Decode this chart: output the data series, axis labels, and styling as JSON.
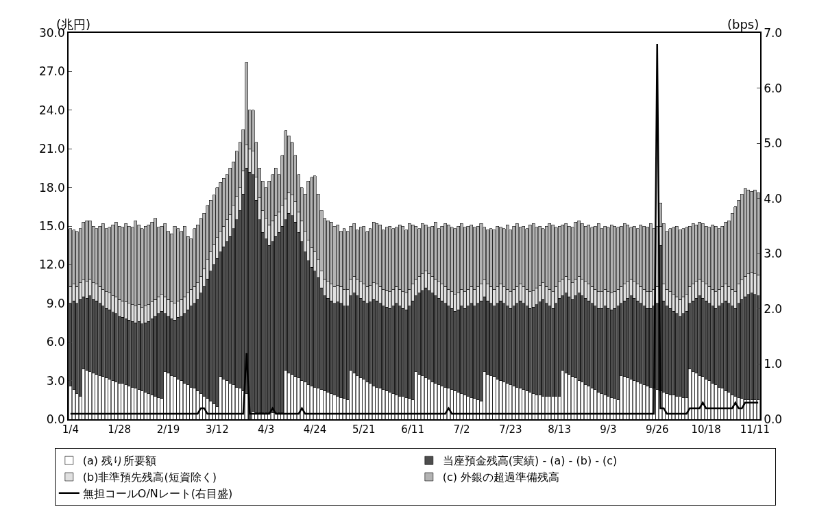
{
  "chart_data": {
    "type": "bar",
    "stacked": true,
    "ylabel": "(兆円)",
    "y2label": "(bps)",
    "categories": [
      "1/4",
      null,
      null,
      null,
      null,
      null,
      null,
      null,
      null,
      null,
      null,
      null,
      null,
      null,
      null,
      "1/28",
      null,
      null,
      null,
      null,
      null,
      null,
      null,
      null,
      null,
      null,
      null,
      null,
      null,
      null,
      "2/19",
      null,
      null,
      null,
      null,
      null,
      null,
      null,
      null,
      null,
      null,
      null,
      null,
      null,
      null,
      "3/12",
      null,
      null,
      null,
      null,
      null,
      null,
      null,
      null,
      null,
      null,
      null,
      null,
      null,
      null,
      "4/3",
      null,
      null,
      null,
      null,
      null,
      null,
      null,
      null,
      null,
      null,
      null,
      null,
      null,
      null,
      "4/24",
      null,
      null,
      null,
      null,
      null,
      null,
      null,
      null,
      null,
      null,
      null,
      null,
      null,
      null,
      "5/21",
      null,
      null,
      null,
      null,
      null,
      null,
      null,
      null,
      null,
      null,
      null,
      null,
      null,
      null,
      "6/11",
      null,
      null,
      null,
      null,
      null,
      null,
      null,
      null,
      null,
      null,
      null,
      null,
      null,
      null,
      "7/2",
      null,
      null,
      null,
      null,
      null,
      null,
      null,
      null,
      null,
      null,
      null,
      null,
      null,
      null,
      "7/23",
      null,
      null,
      null,
      null,
      null,
      null,
      null,
      null,
      null,
      null,
      null,
      null,
      null,
      null,
      "8/13",
      null,
      null,
      null,
      null,
      null,
      null,
      null,
      null,
      null,
      null,
      null,
      null,
      null,
      null,
      "9/3",
      null,
      null,
      null,
      null,
      null,
      null,
      null,
      null,
      null,
      null,
      null,
      null,
      null,
      null,
      "9/26",
      null,
      null,
      null,
      null,
      null,
      null,
      null,
      null,
      null,
      null,
      null,
      null,
      null,
      null,
      "10/18",
      null,
      null,
      null,
      null,
      null,
      null,
      null,
      null,
      null,
      null,
      null,
      null,
      null,
      null,
      "11/11",
      null
    ],
    "series": [
      {
        "name": "(a) 残り所要額",
        "color": "#ffffff",
        "values": [
          2.6,
          2.3,
          2.0,
          1.8,
          3.9,
          3.8,
          3.7,
          3.6,
          3.5,
          3.4,
          3.3,
          3.2,
          3.1,
          3.0,
          2.9,
          2.8,
          2.8,
          2.7,
          2.6,
          2.5,
          2.4,
          2.3,
          2.2,
          2.1,
          2.0,
          1.9,
          1.8,
          1.7,
          1.6,
          3.7,
          3.6,
          3.4,
          3.3,
          3.1,
          3.0,
          2.8,
          2.7,
          2.5,
          2.4,
          2.2,
          2.0,
          1.8,
          1.6,
          1.4,
          1.2,
          1.0,
          3.3,
          3.1,
          3.0,
          2.8,
          2.7,
          2.5,
          2.4,
          2.2,
          2.0,
          null,
          0.6,
          0.5,
          0.5,
          0.5,
          0.5,
          0.5,
          0.5,
          0.5,
          0.5,
          0.5,
          3.8,
          3.6,
          3.5,
          3.3,
          3.2,
          3.0,
          2.9,
          2.7,
          2.6,
          2.5,
          2.4,
          2.3,
          2.2,
          2.1,
          2.0,
          1.9,
          1.8,
          1.7,
          1.6,
          1.5,
          3.8,
          3.6,
          3.4,
          3.2,
          3.1,
          2.9,
          2.8,
          2.6,
          2.5,
          2.4,
          2.3,
          2.2,
          2.1,
          2.0,
          1.9,
          1.8,
          1.8,
          1.7,
          1.6,
          1.5,
          3.7,
          3.5,
          3.4,
          3.2,
          3.1,
          2.9,
          2.8,
          2.7,
          2.6,
          2.5,
          2.4,
          2.3,
          2.2,
          2.1,
          2.0,
          1.9,
          1.8,
          1.7,
          1.6,
          1.5,
          1.4,
          3.7,
          3.5,
          3.4,
          3.3,
          3.1,
          3.0,
          2.9,
          2.8,
          2.7,
          2.6,
          2.5,
          2.4,
          2.3,
          2.2,
          2.1,
          2.0,
          1.9,
          1.9,
          1.8,
          1.8,
          1.8,
          1.8,
          1.8,
          1.8,
          3.8,
          3.6,
          3.5,
          3.3,
          3.2,
          3.0,
          2.9,
          2.7,
          2.6,
          2.4,
          2.3,
          2.1,
          2.0,
          1.9,
          1.8,
          1.7,
          1.6,
          1.5,
          3.4,
          3.3,
          3.2,
          3.1,
          3.0,
          2.9,
          2.8,
          2.7,
          2.6,
          2.5,
          2.4,
          2.3,
          2.2,
          2.1,
          2.0,
          1.9,
          1.9,
          1.8,
          1.8,
          1.7,
          1.7,
          3.9,
          3.7,
          3.6,
          3.4,
          3.3,
          3.1,
          3.0,
          2.8,
          2.7,
          2.5,
          2.4,
          2.2,
          2.1,
          1.9,
          1.8,
          1.7,
          1.6,
          1.5,
          1.5,
          1.5,
          1.5,
          1.5
        ]
      },
      {
        "name": "当座預金残高(実績) - (a) - (b) - (c)",
        "color": "#4d4d4d",
        "values": [
          6.4,
          6.9,
          7.0,
          7.5,
          5.6,
          5.6,
          5.9,
          5.7,
          5.7,
          5.6,
          5.5,
          5.4,
          5.4,
          5.3,
          5.3,
          5.2,
          5.1,
          5.1,
          5.1,
          5.1,
          5.1,
          5.3,
          5.2,
          5.4,
          5.6,
          5.9,
          6.2,
          6.5,
          6.8,
          4.5,
          4.4,
          4.4,
          4.4,
          4.8,
          5.0,
          5.4,
          5.8,
          6.3,
          6.6,
          7.1,
          7.8,
          8.5,
          9.3,
          10.1,
          10.8,
          11.5,
          9.7,
          10.3,
          10.8,
          11.4,
          12.1,
          13.0,
          13.8,
          15.3,
          17.5,
          19.2,
          18.4,
          16.5,
          15.0,
          14.0,
          13.5,
          13.0,
          13.3,
          13.7,
          14.0,
          14.5,
          11.7,
          12.4,
          12.3,
          12.0,
          11.3,
          10.8,
          10.1,
          9.6,
          9.2,
          9.0,
          8.6,
          7.9,
          7.4,
          7.3,
          7.2,
          7.1,
          7.3,
          7.3,
          7.2,
          7.3,
          5.8,
          6.2,
          6.2,
          6.2,
          6.1,
          6.1,
          6.3,
          6.7,
          6.7,
          6.6,
          6.5,
          6.5,
          6.5,
          6.8,
          7.1,
          7.0,
          6.8,
          6.8,
          7.2,
          7.7,
          5.9,
          6.3,
          6.6,
          7.0,
          6.9,
          6.9,
          6.8,
          6.7,
          6.6,
          6.5,
          6.4,
          6.3,
          6.2,
          6.4,
          6.8,
          6.7,
          7.0,
          7.3,
          7.2,
          7.5,
          7.8,
          5.8,
          5.7,
          5.6,
          5.5,
          5.9,
          6.2,
          6.1,
          6.0,
          5.9,
          6.2,
          6.5,
          6.8,
          6.7,
          6.6,
          6.5,
          6.7,
          7.0,
          7.2,
          7.5,
          7.2,
          7.0,
          6.8,
          7.2,
          7.6,
          5.8,
          6.2,
          6.0,
          6.0,
          6.4,
          6.8,
          6.7,
          6.7,
          6.6,
          6.6,
          6.5,
          6.5,
          6.6,
          6.9,
          6.8,
          6.8,
          7.0,
          7.3,
          5.6,
          5.9,
          6.2,
          6.5,
          6.4,
          6.3,
          6.2,
          6.1,
          6.0,
          6.1,
          6.4,
          6.7,
          11.3,
          7.1,
          6.8,
          6.7,
          6.5,
          6.4,
          6.2,
          6.5,
          6.7,
          5.1,
          5.5,
          5.8,
          6.2,
          6.1,
          6.1,
          6.0,
          6.0,
          5.9,
          6.3,
          6.6,
          7.0,
          6.9,
          6.9,
          6.8,
          7.3,
          7.7,
          8.0,
          8.2,
          8.3,
          8.2,
          8.1
        ]
      },
      {
        "name": "(b)非準預先残高(短資除く)",
        "color": "#e0e0e0",
        "values": [
          1.3,
          1.3,
          1.3,
          1.3,
          1.3,
          1.3,
          1.3,
          1.3,
          1.3,
          1.3,
          1.3,
          1.3,
          1.3,
          1.3,
          1.3,
          1.3,
          1.3,
          1.3,
          1.3,
          1.3,
          1.3,
          1.3,
          1.3,
          1.3,
          1.3,
          1.3,
          1.3,
          1.3,
          1.3,
          1.3,
          1.3,
          1.3,
          1.3,
          1.3,
          1.3,
          1.3,
          1.3,
          1.3,
          1.3,
          1.3,
          1.3,
          1.4,
          1.5,
          1.5,
          1.6,
          1.6,
          1.6,
          1.6,
          1.7,
          1.7,
          1.8,
          1.8,
          1.8,
          1.8,
          1.8,
          1.8,
          1.8,
          1.8,
          1.7,
          1.7,
          1.6,
          1.6,
          1.6,
          1.6,
          1.6,
          1.6,
          1.6,
          1.6,
          1.6,
          1.6,
          1.6,
          1.6,
          1.6,
          1.6,
          1.5,
          1.5,
          1.4,
          1.3,
          1.3,
          1.3,
          1.3,
          1.3,
          1.3,
          1.3,
          1.3,
          1.3,
          1.3,
          1.3,
          1.3,
          1.3,
          1.3,
          1.3,
          1.3,
          1.3,
          1.3,
          1.3,
          1.3,
          1.3,
          1.3,
          1.3,
          1.3,
          1.3,
          1.3,
          1.3,
          1.3,
          1.3,
          1.3,
          1.3,
          1.3,
          1.3,
          1.3,
          1.3,
          1.3,
          1.3,
          1.3,
          1.3,
          1.3,
          1.3,
          1.3,
          1.3,
          1.3,
          1.3,
          1.3,
          1.3,
          1.3,
          1.3,
          1.3,
          1.3,
          1.3,
          1.3,
          1.3,
          1.3,
          1.3,
          1.3,
          1.3,
          1.3,
          1.3,
          1.3,
          1.3,
          1.3,
          1.3,
          1.3,
          1.3,
          1.3,
          1.3,
          1.3,
          1.3,
          1.3,
          1.3,
          1.3,
          1.3,
          1.3,
          1.3,
          1.3,
          1.3,
          1.3,
          1.3,
          1.3,
          1.3,
          1.3,
          1.3,
          1.3,
          1.3,
          1.3,
          1.3,
          1.3,
          1.3,
          1.3,
          1.3,
          1.3,
          1.3,
          1.3,
          1.3,
          1.3,
          1.3,
          1.3,
          1.3,
          1.3,
          1.3,
          1.3,
          1.3,
          1.5,
          1.3,
          1.3,
          1.3,
          1.3,
          1.3,
          1.3,
          1.3,
          1.3,
          1.3,
          1.3,
          1.3,
          1.3,
          1.3,
          1.3,
          1.3,
          1.3,
          1.3,
          1.3,
          1.3,
          1.3,
          1.3,
          1.3,
          1.3,
          1.5,
          1.5,
          1.6,
          1.6,
          1.6,
          1.6,
          1.6
        ]
      },
      {
        "name": "(c) 外銀の超過準備残高",
        "color": "#b3b3b3",
        "values": [
          4.5,
          4.2,
          4.3,
          4.2,
          4.5,
          4.7,
          4.5,
          4.4,
          4.3,
          4.7,
          5.1,
          4.9,
          5.1,
          5.5,
          5.8,
          5.7,
          5.7,
          6.1,
          6.0,
          6.0,
          6.6,
          6.2,
          6.1,
          6.2,
          6.2,
          6.2,
          6.3,
          5.4,
          5.3,
          5.7,
          5.3,
          5.3,
          6.0,
          5.6,
          5.3,
          5.5,
          4.4,
          3.9,
          4.5,
          4.5,
          4.5,
          4.3,
          4.2,
          4.0,
          3.8,
          3.9,
          3.8,
          3.7,
          3.5,
          3.6,
          3.4,
          3.5,
          3.5,
          3.2,
          6.4,
          3.0,
          3.2,
          2.7,
          2.3,
          2.3,
          2.4,
          3.4,
          3.6,
          3.7,
          2.9,
          3.9,
          5.3,
          4.4,
          4.1,
          3.6,
          2.9,
          2.6,
          2.9,
          4.6,
          5.5,
          5.9,
          5.1,
          4.7,
          4.7,
          4.7,
          4.8,
          4.7,
          4.7,
          4.3,
          4.7,
          4.5,
          4.1,
          4.1,
          3.8,
          4.2,
          4.5,
          4.3,
          4.4,
          4.7,
          4.7,
          4.8,
          4.6,
          4.9,
          5.1,
          4.7,
          4.6,
          5.0,
          5.1,
          4.9,
          5.1,
          4.6,
          4.1,
          3.7,
          3.9,
          3.6,
          3.6,
          3.9,
          4.4,
          4.1,
          4.5,
          4.9,
          5.0,
          5.0,
          5.1,
          5.2,
          5.1,
          5.0,
          4.9,
          4.8,
          4.8,
          4.7,
          4.7,
          4.1,
          4.2,
          4.5,
          4.6,
          4.7,
          4.4,
          4.5,
          5.0,
          4.8,
          4.9,
          4.9,
          4.4,
          4.7,
          4.7,
          5.2,
          5.2,
          4.7,
          4.6,
          4.2,
          4.7,
          5.1,
          5.2,
          4.6,
          4.3,
          4.2,
          4.1,
          4.2,
          4.3,
          4.4,
          4.3,
          4.3,
          4.3,
          4.6,
          4.6,
          4.9,
          5.3,
          4.9,
          4.9,
          5.0,
          5.3,
          5.1,
          4.8,
          4.7,
          4.7,
          4.4,
          4.0,
          4.3,
          4.3,
          4.8,
          4.9,
          5.0,
          5.3,
          4.7,
          4.7,
          1.8,
          4.7,
          4.5,
          4.9,
          5.2,
          5.5,
          5.4,
          5.3,
          5.2,
          4.7,
          4.7,
          4.4,
          4.4,
          4.5,
          4.5,
          4.6,
          5.0,
          5.1,
          4.7,
          4.7,
          4.8,
          5.1,
          5.9,
          6.6,
          6.5,
          6.7,
          6.8,
          6.5,
          6.3,
          6.5,
          6.4
        ]
      },
      {
        "name": "無担コールO/Nレート(右目盛)",
        "type": "line",
        "axis": "y2",
        "color": "#000000",
        "values": [
          0.1,
          0.1,
          0.1,
          0.1,
          0.1,
          0.1,
          0.1,
          0.1,
          0.1,
          0.1,
          0.1,
          0.1,
          0.1,
          0.1,
          0.1,
          0.1,
          0.1,
          0.1,
          0.1,
          0.1,
          0.1,
          0.1,
          0.1,
          0.1,
          0.1,
          0.1,
          0.1,
          0.1,
          0.1,
          0.1,
          0.1,
          0.1,
          0.1,
          0.1,
          0.1,
          0.1,
          0.1,
          0.1,
          0.1,
          0.1,
          0.2,
          0.2,
          0.1,
          0.1,
          0.1,
          0.1,
          0.1,
          0.1,
          0.1,
          0.1,
          0.1,
          0.1,
          0.1,
          0.1,
          1.2,
          0.1,
          0.1,
          0.1,
          0.1,
          0.1,
          0.1,
          0.1,
          0.2,
          0.1,
          0.1,
          0.1,
          0.1,
          0.1,
          0.1,
          0.1,
          0.1,
          0.2,
          0.1,
          0.1,
          0.1,
          0.1,
          0.1,
          0.1,
          0.1,
          0.1,
          0.1,
          0.1,
          0.1,
          0.1,
          0.1,
          0.1,
          0.1,
          0.1,
          0.1,
          0.1,
          0.1,
          0.1,
          0.1,
          0.1,
          0.1,
          0.1,
          0.1,
          0.1,
          0.1,
          0.1,
          0.1,
          0.1,
          0.1,
          0.1,
          0.1,
          0.1,
          0.1,
          0.1,
          0.1,
          0.1,
          0.1,
          0.1,
          0.1,
          0.1,
          0.1,
          0.1,
          0.2,
          0.1,
          0.1,
          0.1,
          0.1,
          0.1,
          0.1,
          0.1,
          0.1,
          0.1,
          0.1,
          0.1,
          0.1,
          0.1,
          0.1,
          0.1,
          0.1,
          0.1,
          0.1,
          0.1,
          0.1,
          0.1,
          0.1,
          0.1,
          0.1,
          0.1,
          0.1,
          0.1,
          0.1,
          0.1,
          0.1,
          0.1,
          0.1,
          0.1,
          0.1,
          0.1,
          0.1,
          0.1,
          0.1,
          0.1,
          0.1,
          0.1,
          0.1,
          0.1,
          0.1,
          0.1,
          0.1,
          0.1,
          0.1,
          0.1,
          0.1,
          0.1,
          0.1,
          0.1,
          0.1,
          0.1,
          0.1,
          0.1,
          0.1,
          0.1,
          0.1,
          0.1,
          0.1,
          0.1,
          6.8,
          0.2,
          0.2,
          0.1,
          0.1,
          0.1,
          0.1,
          0.1,
          0.1,
          0.1,
          0.2,
          0.2,
          0.2,
          0.2,
          0.3,
          0.2,
          0.2,
          0.2,
          0.2,
          0.2,
          0.2,
          0.2,
          0.2,
          0.2,
          0.3,
          0.2,
          0.2,
          0.3,
          0.3,
          0.3,
          0.3,
          0.3
        ]
      }
    ],
    "ylim": [
      0,
      30
    ],
    "yticks": [
      {
        "value": 0,
        "label": "0.0"
      },
      {
        "value": 3,
        "label": "3.0"
      },
      {
        "value": 6,
        "label": "6.0"
      },
      {
        "value": 9,
        "label": "9.0"
      },
      {
        "value": 12,
        "label": "12.0"
      },
      {
        "value": 15,
        "label": "15.0"
      },
      {
        "value": 18,
        "label": "18.0"
      },
      {
        "value": 21,
        "label": "21.0"
      },
      {
        "value": 24,
        "label": "24.0"
      },
      {
        "value": 27,
        "label": "27.0"
      },
      {
        "value": 30,
        "label": "30.0"
      }
    ],
    "y2lim": [
      0,
      7
    ],
    "y2ticks": [
      {
        "value": 0,
        "label": "0.0"
      },
      {
        "value": 1,
        "label": "1.0"
      },
      {
        "value": 2,
        "label": "2.0"
      },
      {
        "value": 3,
        "label": "3.0"
      },
      {
        "value": 4,
        "label": "4.0"
      },
      {
        "value": 5,
        "label": "5.0"
      },
      {
        "value": 6,
        "label": "6.0"
      },
      {
        "value": 7,
        "label": "7.0"
      }
    ],
    "legend": "bottom",
    "marker": "none",
    "line_style": "solid"
  }
}
